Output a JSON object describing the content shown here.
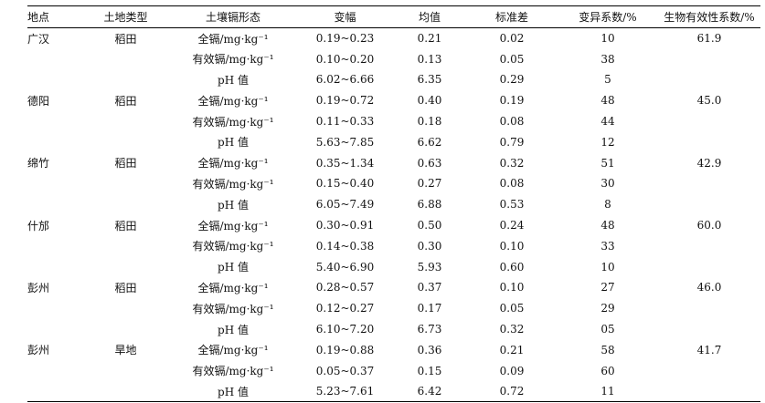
{
  "table": {
    "header": [
      "地点",
      "土地类型",
      "土壤镉形态",
      "变幅",
      "均值",
      "标准差",
      "变异系数/%",
      "生物有效性系数/%"
    ],
    "groups": [
      {
        "site": "广汉",
        "land": "稻田",
        "bio": "61.9",
        "rows": [
          [
            "全镉/mg·kg⁻¹",
            "0.19~0.23",
            "0.21",
            "0.02",
            "10"
          ],
          [
            "有效镉/mg·kg⁻¹",
            "0.10~0.20",
            "0.13",
            "0.05",
            "38"
          ],
          [
            "pH 值",
            "6.02~6.66",
            "6.35",
            "0.29",
            "5"
          ]
        ]
      },
      {
        "site": "德阳",
        "land": "稻田",
        "bio": "45.0",
        "rows": [
          [
            "全镉/mg·kg⁻¹",
            "0.19~0.72",
            "0.40",
            "0.19",
            "48"
          ],
          [
            "有效镉/mg·kg⁻¹",
            "0.11~0.33",
            "0.18",
            "0.08",
            "44"
          ],
          [
            "pH 值",
            "5.63~7.85",
            "6.62",
            "0.79",
            "12"
          ]
        ]
      },
      {
        "site": "绵竹",
        "land": "稻田",
        "bio": "42.9",
        "rows": [
          [
            "全镉/mg·kg⁻¹",
            "0.35~1.34",
            "0.63",
            "0.32",
            "51"
          ],
          [
            "有效镉/mg·kg⁻¹",
            "0.15~0.40",
            "0.27",
            "0.08",
            "30"
          ],
          [
            "pH 值",
            "6.05~7.49",
            "6.88",
            "0.53",
            "8"
          ]
        ]
      },
      {
        "site": "什邡",
        "land": "稻田",
        "bio": "60.0",
        "rows": [
          [
            "全镉/mg·kg⁻¹",
            "0.30~0.91",
            "0.50",
            "0.24",
            "48"
          ],
          [
            "有效镉/mg·kg⁻¹",
            "0.14~0.38",
            "0.30",
            "0.10",
            "33"
          ],
          [
            "pH 值",
            "5.40~6.90",
            "5.93",
            "0.60",
            "10"
          ]
        ]
      },
      {
        "site": "彭州",
        "land": "稻田",
        "bio": "46.0",
        "rows": [
          [
            "全镉/mg·kg⁻¹",
            "0.28~0.57",
            "0.37",
            "0.10",
            "27"
          ],
          [
            "有效镉/mg·kg⁻¹",
            "0.12~0.27",
            "0.17",
            "0.05",
            "29"
          ],
          [
            "pH 值",
            "6.10~7.20",
            "6.73",
            "0.32",
            "05"
          ]
        ]
      },
      {
        "site": "彭州",
        "land": "旱地",
        "bio": "41.7",
        "rows": [
          [
            "全镉/mg·kg⁻¹",
            "0.19~0.88",
            "0.36",
            "0.21",
            "58"
          ],
          [
            "有效镉/mg·kg⁻¹",
            "0.05~0.37",
            "0.15",
            "0.09",
            "60"
          ],
          [
            "pH 值",
            "5.23~7.61",
            "6.42",
            "0.72",
            "11"
          ]
        ]
      }
    ]
  }
}
